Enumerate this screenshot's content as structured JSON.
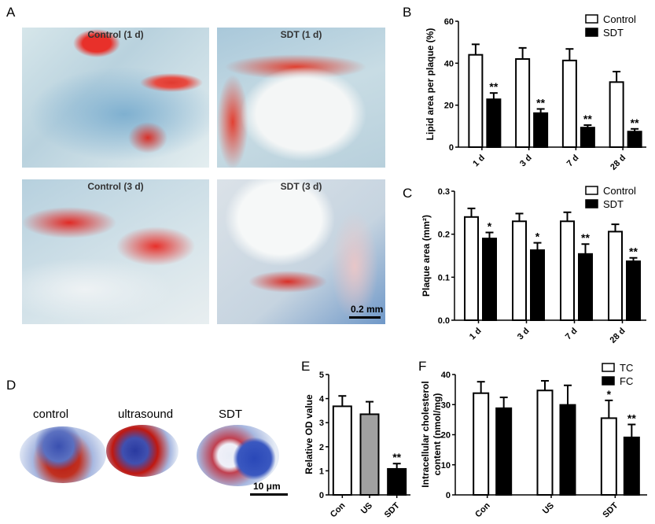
{
  "panels": {
    "a": "A",
    "b": "B",
    "c": "C",
    "d": "D",
    "e": "E",
    "f": "F"
  },
  "panel_a": {
    "captions": [
      "Control (1 d)",
      "SDT (1 d)",
      "Control (3 d)",
      "SDT (3 d)"
    ],
    "scale_bar": "0.2 mm"
  },
  "panel_d": {
    "captions": [
      "control",
      "ultrasound",
      "SDT"
    ],
    "scale_bar": "10 μm"
  },
  "chart_data": [
    {
      "type": "bar",
      "panel": "B",
      "title": "",
      "xlabel": "",
      "ylabel": "Lipid area per plaque (%)",
      "ylim": [
        0,
        60
      ],
      "yticks": [
        "0",
        "20",
        "40",
        "60"
      ],
      "ytick_values": [
        0,
        20,
        40,
        60
      ],
      "categories": [
        "1 d",
        "3 d",
        "7 d",
        "28 d"
      ],
      "legend": "top-right",
      "series": [
        {
          "name": "Control",
          "color": "#ffffff",
          "values": [
            44,
            42,
            41.3,
            31
          ],
          "errors": [
            5,
            5.3,
            5.5,
            5
          ],
          "sig": [
            "",
            "",
            "",
            ""
          ]
        },
        {
          "name": "SDT",
          "color": "#000000",
          "values": [
            22.8,
            16.2,
            9.3,
            7.4
          ],
          "errors": [
            3,
            2,
            1.2,
            1.3
          ],
          "sig": [
            "**",
            "**",
            "**",
            "**"
          ]
        }
      ]
    },
    {
      "type": "bar",
      "panel": "C",
      "title": "",
      "xlabel": "",
      "ylabel": "Plaque area (mm²)",
      "ylim": [
        0,
        0.3
      ],
      "yticks": [
        "0.0",
        "0.1",
        "0.2",
        "0.3"
      ],
      "ytick_values": [
        0,
        0.1,
        0.2,
        0.3
      ],
      "categories": [
        "1 d",
        "3 d",
        "7 d",
        "28 d"
      ],
      "legend": "top-right",
      "series": [
        {
          "name": "Control",
          "color": "#ffffff",
          "values": [
            0.24,
            0.23,
            0.23,
            0.206
          ],
          "errors": [
            0.02,
            0.018,
            0.021,
            0.017
          ],
          "sig": [
            "",
            "",
            "",
            ""
          ]
        },
        {
          "name": "SDT",
          "color": "#000000",
          "values": [
            0.19,
            0.163,
            0.154,
            0.137
          ],
          "errors": [
            0.014,
            0.017,
            0.023,
            0.008
          ],
          "sig": [
            "*",
            "*",
            "**",
            "**"
          ]
        }
      ]
    },
    {
      "type": "bar",
      "panel": "E",
      "title": "",
      "xlabel": "",
      "ylabel": "Relative OD value",
      "ylim": [
        0,
        5
      ],
      "yticks": [
        "0",
        "1",
        "2",
        "3",
        "4",
        "5"
      ],
      "ytick_values": [
        0,
        1,
        2,
        3,
        4,
        5
      ],
      "categories": [
        "Con",
        "US",
        "SDT"
      ],
      "legend": "none",
      "series": [
        {
          "name": "Relative OD",
          "colors": [
            "#ffffff",
            "#a0a0a0",
            "#000000"
          ],
          "values": [
            3.68,
            3.35,
            1.08
          ],
          "errors": [
            0.43,
            0.52,
            0.22
          ],
          "sig": [
            "",
            "",
            "**"
          ]
        }
      ]
    },
    {
      "type": "bar",
      "panel": "F",
      "title": "",
      "xlabel": "",
      "ylabel": "Intracellular cholesterol content (nmol/mg)",
      "ylabel_lines": [
        "Intracellular cholesterol",
        "content (nmol/mg)"
      ],
      "ylim": [
        0,
        40
      ],
      "yticks": [
        "0",
        "10",
        "20",
        "30",
        "40"
      ],
      "ytick_values": [
        0,
        10,
        20,
        30,
        40
      ],
      "categories": [
        "Con",
        "US",
        "SDT"
      ],
      "legend": "top-right",
      "series": [
        {
          "name": "TC",
          "color": "#ffffff",
          "values": [
            33.8,
            34.7,
            25.5
          ],
          "errors": [
            3.8,
            3.2,
            5.9
          ],
          "sig": [
            "",
            "",
            "*"
          ]
        },
        {
          "name": "FC",
          "color": "#000000",
          "values": [
            28.8,
            29.9,
            19.1
          ],
          "errors": [
            3.6,
            6.5,
            4.3
          ],
          "sig": [
            "",
            "",
            "**"
          ]
        }
      ]
    }
  ]
}
